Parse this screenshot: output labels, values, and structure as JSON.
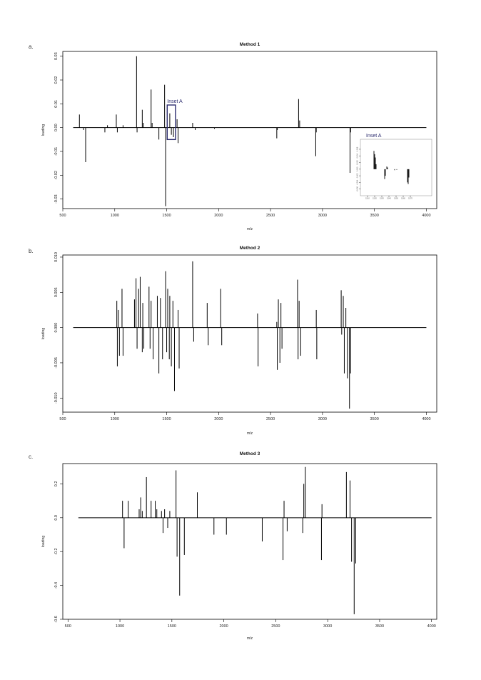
{
  "chart_data": [
    {
      "panel_label": "a.",
      "type": "line",
      "title": "Method 1",
      "xlabel": "m/z",
      "ylabel": "loading",
      "xlim": [
        500,
        4100
      ],
      "ylim": [
        -0.034,
        0.032
      ],
      "xticks": [
        500,
        1000,
        1500,
        2000,
        2500,
        3000,
        3500,
        4000
      ],
      "yticks": [
        -0.03,
        -0.02,
        -0.01,
        0.0,
        0.01,
        0.02,
        0.03
      ],
      "ytick_labels": [
        "-0.03",
        "-0.02",
        "-0.01",
        "0.00",
        "0.01",
        "0.02",
        "0.03"
      ],
      "grid": false,
      "baseline": {
        "x_start": 600,
        "x_end": 4000,
        "y": 0
      },
      "x": [
        660,
        700,
        720,
        905,
        930,
        1015,
        1025,
        1080,
        1210,
        1215,
        1265,
        1275,
        1350,
        1360,
        1425,
        1480,
        1490,
        1530,
        1545,
        1565,
        1600,
        1610,
        1750,
        1775,
        1960,
        2560,
        2565,
        2770,
        2780,
        2935,
        2940,
        3265,
        3270
      ],
      "y": [
        0.0055,
        -0.001,
        -0.0145,
        -0.002,
        0.001,
        0.0055,
        -0.002,
        0.001,
        0.03,
        -0.002,
        0.0075,
        0.002,
        0.016,
        0.002,
        -0.005,
        0.018,
        -0.033,
        0.006,
        -0.003,
        -0.004,
        0.0035,
        -0.0065,
        0.002,
        -0.001,
        -0.0005,
        -0.0045,
        -0.001,
        0.012,
        0.003,
        -0.012,
        -0.002,
        -0.019,
        -0.002
      ],
      "annotation": {
        "label": "Inset A",
        "x_range": [
          1505,
          1585
        ],
        "y_range": [
          -0.005,
          0.0095
        ]
      },
      "inset": {
        "title": "Inset A",
        "xlim": [
          1500,
          1600
        ],
        "ylim": [
          -0.008,
          0.009
        ],
        "xticks": [
          1510,
          1520,
          1530,
          1540,
          1550,
          1560,
          1570
        ],
        "yticks": [
          -0.006,
          -0.004,
          -0.002,
          0.0,
          0.002,
          0.004,
          0.006
        ],
        "ytick_labels": [
          "-0.006",
          "-0.004",
          "-0.002",
          "0.000",
          "0.002",
          "0.004",
          "0.006"
        ],
        "x": [
          1519,
          1520,
          1521,
          1522,
          1534,
          1535,
          1537,
          1538,
          1548,
          1551,
          1566,
          1567,
          1568
        ],
        "y": [
          0.0055,
          0.0045,
          0.0035,
          0.0015,
          -0.003,
          -0.002,
          0.0008,
          0.0005,
          -0.0003,
          -0.0002,
          -0.004,
          -0.0045,
          -0.0025
        ]
      }
    },
    {
      "panel_label": "b.",
      "type": "line",
      "title": "Method 2",
      "xlabel": "m/z",
      "ylabel": "loading",
      "xlim": [
        500,
        4100
      ],
      "ylim": [
        -0.012,
        0.0103
      ],
      "xticks": [
        500,
        1000,
        1500,
        2000,
        2500,
        3000,
        3500,
        4000
      ],
      "yticks": [
        -0.01,
        -0.005,
        0.0,
        0.005,
        0.01
      ],
      "ytick_labels": [
        "-0.010",
        "-0.005",
        "0.000",
        "0.005",
        "0.010"
      ],
      "grid": false,
      "baseline": {
        "x_start": 600,
        "x_end": 4000,
        "y": 0
      },
      "x": [
        1020,
        1025,
        1035,
        1045,
        1070,
        1080,
        1190,
        1205,
        1215,
        1230,
        1245,
        1265,
        1270,
        1280,
        1330,
        1340,
        1350,
        1370,
        1410,
        1425,
        1440,
        1460,
        1490,
        1500,
        1510,
        1525,
        1530,
        1545,
        1560,
        1575,
        1610,
        1620,
        1750,
        1760,
        1890,
        1900,
        2020,
        2030,
        2375,
        2380,
        2560,
        2565,
        2575,
        2590,
        2600,
        2610,
        2760,
        2765,
        2775,
        2790,
        2940,
        2945,
        3180,
        3185,
        3200,
        3210,
        3225,
        3240,
        3260,
        3270
      ],
      "y": [
        0.0038,
        -0.0055,
        0.0025,
        -0.004,
        0.0055,
        -0.004,
        0.004,
        0.007,
        -0.003,
        0.0055,
        0.0072,
        -0.0035,
        0.0035,
        -0.003,
        0.0058,
        -0.003,
        0.0038,
        -0.0045,
        0.0045,
        -0.0065,
        0.0042,
        -0.0045,
        0.008,
        -0.0035,
        0.0055,
        -0.0045,
        0.0045,
        -0.0055,
        0.0038,
        -0.009,
        0.0025,
        -0.0058,
        0.0094,
        -0.002,
        0.0035,
        -0.0025,
        0.0055,
        -0.0025,
        0.002,
        -0.0055,
        0.0008,
        -0.006,
        0.004,
        -0.005,
        0.0035,
        -0.003,
        0.0068,
        -0.0045,
        0.0038,
        -0.004,
        0.0025,
        -0.0045,
        0.0053,
        -0.001,
        0.0045,
        -0.0065,
        0.0028,
        -0.0072,
        -0.0115,
        -0.0065
      ]
    },
    {
      "panel_label": "c.",
      "type": "line",
      "title": "Method 3",
      "xlabel": "m/z",
      "ylabel": "loading",
      "xlim": [
        450,
        4050
      ],
      "ylim": [
        -0.6,
        0.32
      ],
      "xticks": [
        500,
        1000,
        1500,
        2000,
        2500,
        3000,
        3500,
        4000
      ],
      "yticks": [
        -0.6,
        -0.4,
        -0.2,
        0.0,
        0.2
      ],
      "ytick_labels": [
        "-0.6",
        "-0.4",
        "-0.2",
        "0.0",
        "0.2"
      ],
      "grid": false,
      "baseline": {
        "x_start": 600,
        "x_end": 4000,
        "y": 0
      },
      "x": [
        1025,
        1040,
        1080,
        1185,
        1200,
        1215,
        1255,
        1300,
        1340,
        1355,
        1400,
        1415,
        1430,
        1460,
        1480,
        1540,
        1550,
        1575,
        1620,
        1745,
        1905,
        2025,
        2370,
        2570,
        2580,
        2610,
        2760,
        2770,
        2785,
        2940,
        2945,
        3180,
        3215,
        3230,
        3255,
        3270
      ],
      "y": [
        0.1,
        -0.18,
        0.1,
        0.05,
        0.12,
        0.04,
        0.24,
        0.1,
        0.1,
        0.05,
        0.04,
        -0.09,
        0.05,
        -0.06,
        0.04,
        0.28,
        -0.23,
        -0.46,
        -0.22,
        0.15,
        -0.1,
        -0.1,
        -0.14,
        -0.25,
        0.1,
        -0.08,
        -0.09,
        0.2,
        0.3,
        -0.25,
        0.08,
        0.27,
        0.22,
        -0.26,
        -0.57,
        -0.27
      ]
    }
  ]
}
